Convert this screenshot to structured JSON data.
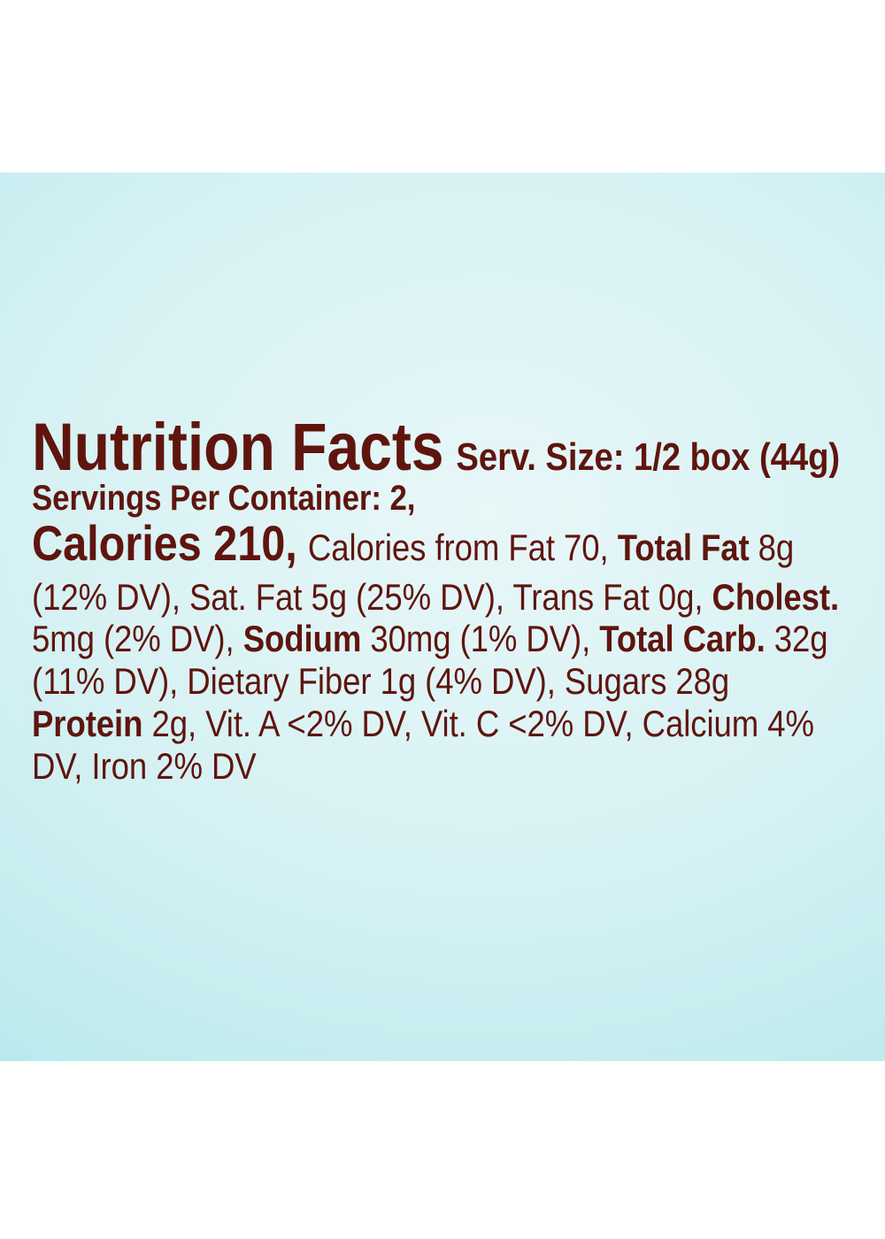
{
  "panel": {
    "colors": {
      "text": "#5f150e",
      "panel_center": "#e8f7f8",
      "panel_edge": "#a8e5e9",
      "page_background": "#ffffff"
    }
  },
  "nutrition": {
    "title": "Nutrition Facts",
    "serving_size": "Serv. Size: 1/2 box (44g)",
    "servings_per_container": "Servings Per Container: 2,",
    "calories_heading": "Calories 210,",
    "calories_from_fat": "Calories from Fat 70, ",
    "total_fat_label": "Total Fat",
    "total_fat_value": " 8g",
    "line_fat_detail": "(12% DV), Sat. Fat 5g (25% DV), Trans Fat 0g, ",
    "cholesterol_label": "Cholest.",
    "cholesterol_value": "5mg (2% DV), ",
    "sodium_label": "Sodium",
    "sodium_value": " 30mg (1% DV), ",
    "total_carb_label": "Total Carb.",
    "total_carb_value": " 32g",
    "line_carb_detail": "(11% DV), Dietary Fiber 1g (4% DV), Sugars 28g",
    "protein_label": "Protein",
    "protein_rest": " 2g, Vit. A <2% DV, Vit. C <2% DV, Calcium 4%",
    "line_last": "DV, Iron 2% DV"
  }
}
